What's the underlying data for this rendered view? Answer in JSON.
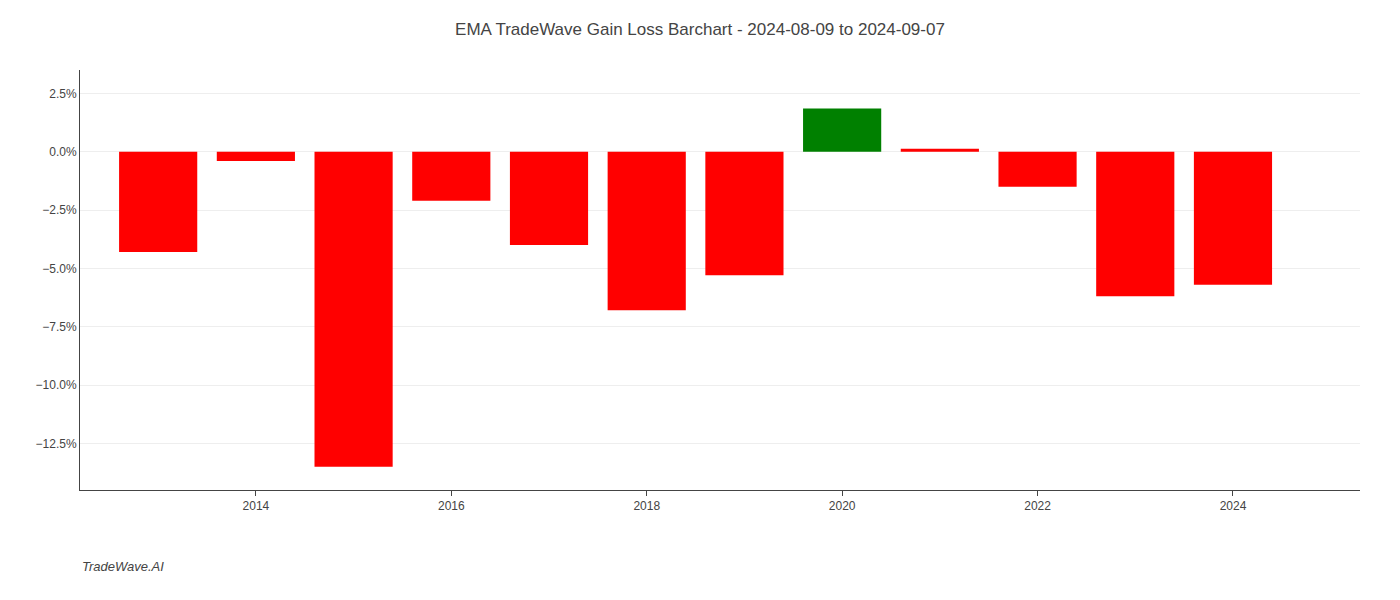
{
  "chart_data": {
    "type": "bar",
    "title": "EMA TradeWave Gain Loss Barchart - 2024-08-09 to 2024-09-07",
    "annotations": [
      "TradeWave.AI"
    ],
    "x": [
      2013,
      2014,
      2015,
      2016,
      2017,
      2018,
      2019,
      2020,
      2021,
      2022,
      2023,
      2024
    ],
    "values": [
      -4.3,
      -0.4,
      -13.5,
      -2.1,
      -4.0,
      -6.8,
      -5.3,
      1.85,
      0.12,
      -1.5,
      -6.2,
      -5.7
    ],
    "colors": [
      "#ff0000",
      "#ff0000",
      "#ff0000",
      "#ff0000",
      "#ff0000",
      "#ff0000",
      "#ff0000",
      "#008000",
      "#ff0000",
      "#ff0000",
      "#ff0000",
      "#ff0000"
    ],
    "xlim": [
      2012.2,
      2025.3
    ],
    "xticks": [
      2014,
      2016,
      2018,
      2020,
      2022,
      2024
    ],
    "ylim": [
      -14.5,
      3.5
    ],
    "yticks": [
      {
        "value": 2.5,
        "label": "2.5%"
      },
      {
        "value": 0.0,
        "label": "0.0%"
      },
      {
        "value": -2.5,
        "label": "−2.5%"
      },
      {
        "value": -5.0,
        "label": "−5.0%"
      },
      {
        "value": -7.5,
        "label": "−7.5%"
      },
      {
        "value": -10.0,
        "label": "−10.0%"
      },
      {
        "value": -12.5,
        "label": "−12.5%"
      }
    ],
    "grid": true
  }
}
